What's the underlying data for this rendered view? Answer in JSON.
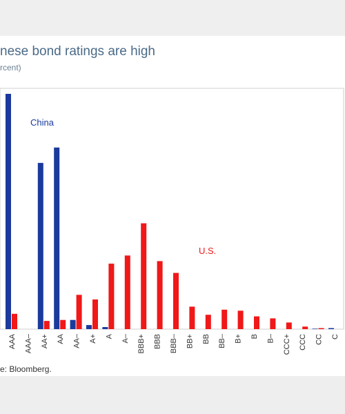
{
  "header": {
    "title": "nese bond ratings are high",
    "subtitle": "rcent)"
  },
  "footer": {
    "source": "e: Bloomberg."
  },
  "colors": {
    "china": "#1a3a9c",
    "us": "#f01818",
    "frame": "#cfcfcf"
  },
  "chart_data": {
    "type": "bar",
    "title": "nese bond ratings are high",
    "subtitle": "rcent)",
    "categories": [
      "AAA",
      "AAA–",
      "AA+",
      "AA",
      "AA–",
      "A+",
      "A",
      "A–",
      "BBB+",
      "BBB",
      "BBB–",
      "BB+",
      "BB",
      "BB–",
      "B+",
      "B",
      "B–",
      "CCC+",
      "CCC",
      "CC",
      "C"
    ],
    "series": [
      {
        "name": "China",
        "color": "#1a3a9c",
        "values": [
          46,
          0,
          32.5,
          35.5,
          1.8,
          0.8,
          0.4,
          0,
          0,
          0,
          0,
          0,
          0,
          0,
          0,
          0,
          0,
          0,
          0,
          0.1,
          0.2
        ]
      },
      {
        "name": "U.S.",
        "color": "#f01818",
        "values": [
          3.0,
          0,
          1.6,
          1.8,
          6.7,
          5.8,
          12.8,
          14.4,
          20.7,
          13.3,
          11.0,
          4.4,
          2.8,
          3.8,
          3.6,
          2.5,
          2.1,
          1.3,
          0.5,
          0.2,
          0
        ]
      }
    ],
    "labels": {
      "china": "China",
      "us": "U.S."
    },
    "ylim": [
      0,
      46
    ],
    "grid": false,
    "legend": "inline labels"
  }
}
